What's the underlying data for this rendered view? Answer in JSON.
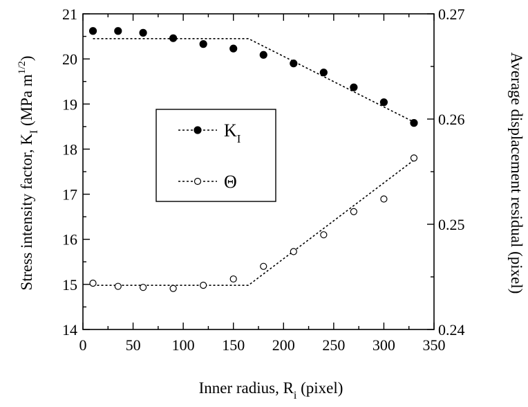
{
  "chart_data": {
    "type": "scatter",
    "xlabel": "Inner radius, R",
    "xlabel_sub": "i",
    "xlabel_suffix": " (pixel)",
    "ylabel_left": "Stress intensity factor, K",
    "ylabel_left_sub": "I",
    "ylabel_left_suffix": " (MPa m",
    "ylabel_left_sup": "1/2",
    "ylabel_left_close": ")",
    "ylabel_right": "Average displacement residual (pixel)",
    "xlim": [
      0,
      350
    ],
    "ylim_left": [
      14,
      21
    ],
    "ylim_right": [
      0.24,
      0.27
    ],
    "x_ticks": [
      0,
      50,
      100,
      150,
      200,
      250,
      300,
      350
    ],
    "y_left_ticks": [
      14,
      15,
      16,
      17,
      18,
      19,
      20,
      21
    ],
    "y_right_ticks": [
      "0.24",
      "0.25",
      "0.26",
      "0.27"
    ],
    "y_right_tick_values": [
      0.24,
      0.25,
      0.26,
      0.27
    ],
    "legend_placement": "center-left",
    "series": [
      {
        "name": "K",
        "name_sub": "I",
        "marker": "filled-circle",
        "axis": "left",
        "x": [
          10,
          35,
          60,
          90,
          120,
          150,
          180,
          210,
          240,
          270,
          300,
          330
        ],
        "y": [
          20.62,
          20.62,
          20.58,
          20.46,
          20.33,
          20.23,
          20.09,
          19.9,
          19.7,
          19.37,
          19.04,
          18.58
        ],
        "fit": [
          [
            10,
            20.45
          ],
          [
            165,
            20.45
          ],
          [
            330,
            18.6
          ]
        ]
      },
      {
        "name": "Θ",
        "marker": "open-circle",
        "axis": "right",
        "x": [
          10,
          35,
          60,
          90,
          120,
          150,
          180,
          210,
          240,
          270,
          300,
          330
        ],
        "y": [
          0.2444,
          0.2441,
          0.244,
          0.2439,
          0.2442,
          0.2448,
          0.246,
          0.2474,
          0.249,
          0.2512,
          0.2524,
          0.2563
        ],
        "fit": [
          [
            10,
            0.2442
          ],
          [
            165,
            0.2442
          ],
          [
            330,
            0.2561
          ]
        ]
      }
    ]
  }
}
